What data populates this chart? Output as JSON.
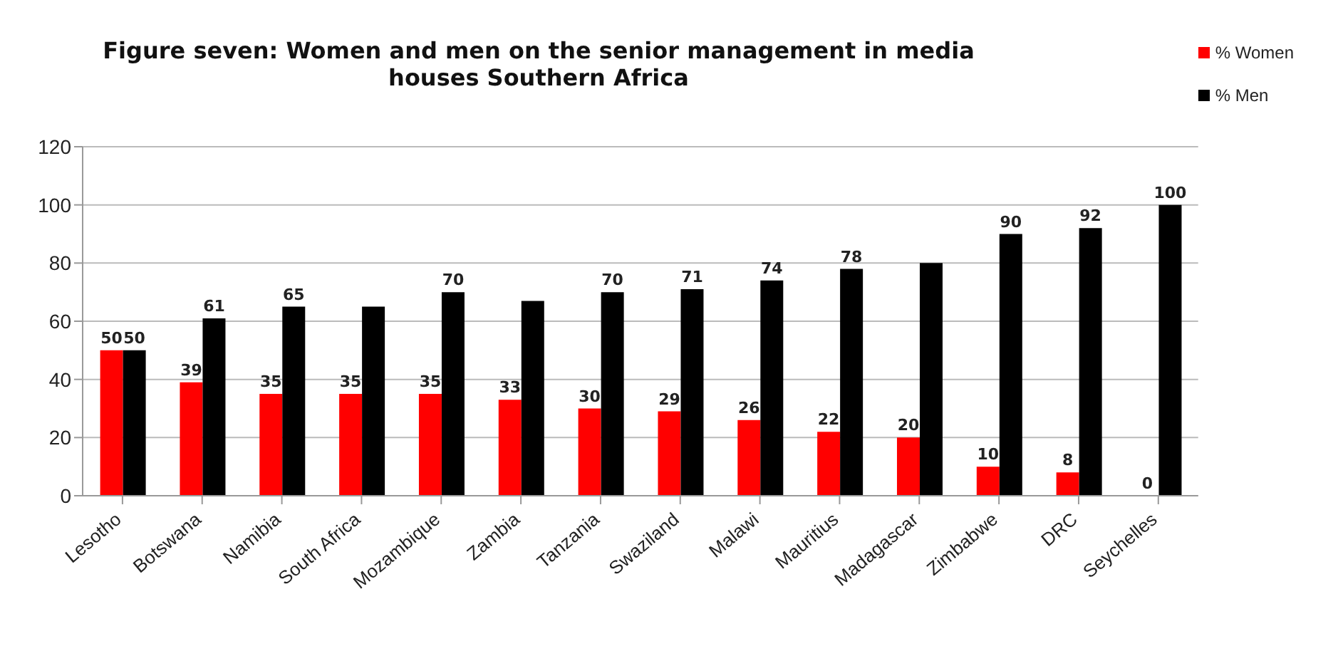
{
  "chart_data": {
    "type": "bar",
    "title": "Figure seven: Women and men on the senior management in media houses Southern Africa",
    "categories": [
      "Lesotho",
      "Botswana",
      "Namibia",
      "South Africa",
      "Mozambique",
      "Zambia",
      "Tanzania",
      "Swaziland",
      "Malawi",
      "Mauritius",
      "Madagascar",
      "Zimbabwe",
      "DRC",
      "Seychelles"
    ],
    "series": [
      {
        "name": "% Women",
        "color": "#ff0000",
        "values": [
          50,
          39,
          35,
          35,
          35,
          33,
          30,
          29,
          26,
          22,
          20,
          10,
          8,
          0
        ],
        "value_labels": [
          "50",
          "39",
          "35",
          "35",
          "35",
          "33",
          "30",
          "29",
          "26",
          "22",
          "20",
          "10",
          "8",
          "0"
        ]
      },
      {
        "name": "% Men",
        "color": "#000000",
        "values": [
          50,
          61,
          65,
          65,
          70,
          67,
          70,
          71,
          74,
          78,
          80,
          90,
          92,
          100
        ],
        "value_labels": [
          "50",
          "61",
          "65",
          null,
          "70",
          null,
          "70",
          "71",
          "74",
          "78",
          null,
          "90",
          "92",
          "100"
        ]
      }
    ],
    "ylim": [
      0,
      120
    ],
    "yticks": [
      0,
      20,
      40,
      60,
      80,
      100,
      120
    ],
    "grid": "y",
    "legend": "top right"
  }
}
